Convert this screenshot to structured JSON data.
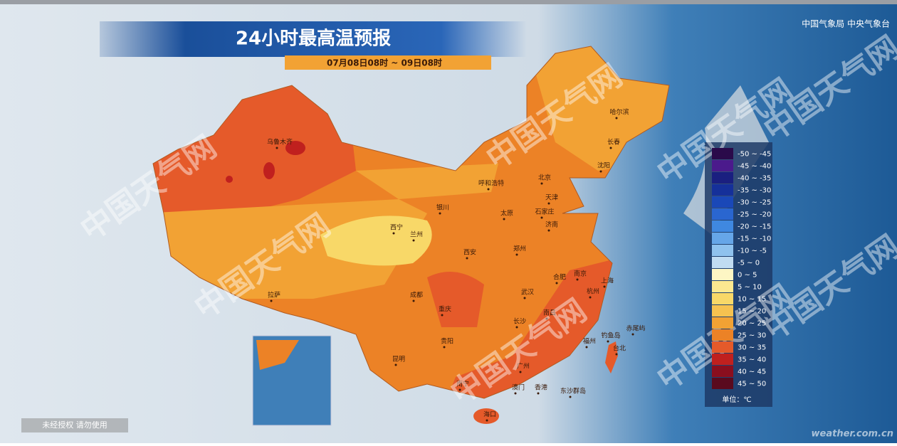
{
  "title": "24小时最高温预报",
  "subtitle": "07月08日08时 ~ 09日08时",
  "source": "中国气象局 中央气象台",
  "legend": {
    "items": [
      {
        "label": "-50 ~ -45",
        "color": "#2a0a4a"
      },
      {
        "label": "-45 ~ -40",
        "color": "#4b1a8c"
      },
      {
        "label": "-40 ~ -35",
        "color": "#1a1f80"
      },
      {
        "label": "-35 ~ -30",
        "color": "#15309a"
      },
      {
        "label": "-30 ~ -25",
        "color": "#1a48b8"
      },
      {
        "label": "-25 ~ -20",
        "color": "#2a66d0"
      },
      {
        "label": "-20 ~ -15",
        "color": "#3f88e0"
      },
      {
        "label": "-15 ~ -10",
        "color": "#66a6e8"
      },
      {
        "label": "-10 ~ -5",
        "color": "#8fc2ee"
      },
      {
        "label": "-5 ~ 0",
        "color": "#c0dcf2"
      },
      {
        "label": "0 ~ 5",
        "color": "#fdf6c4"
      },
      {
        "label": "5 ~ 10",
        "color": "#fbe890"
      },
      {
        "label": "10 ~ 15",
        "color": "#f8d868"
      },
      {
        "label": "15 ~ 20",
        "color": "#f6c250"
      },
      {
        "label": "20 ~ 25",
        "color": "#f2a234"
      },
      {
        "label": "25 ~ 30",
        "color": "#ec8226"
      },
      {
        "label": "30 ~ 35",
        "color": "#e55a2a"
      },
      {
        "label": "35 ~ 40",
        "color": "#c0201e"
      },
      {
        "label": "40 ~ 45",
        "color": "#8a0e1e"
      },
      {
        "label": "45 ~ 50",
        "color": "#5a0a1e"
      }
    ],
    "unit": "单位：℃"
  },
  "cities": [
    "乌鲁木齐",
    "哈尔滨",
    "长春",
    "沈阳",
    "呼和浩特",
    "北京",
    "天津",
    "银川",
    "太原",
    "石家庄",
    "济南",
    "西宁",
    "兰州",
    "西安",
    "郑州",
    "合肥",
    "南京",
    "上海",
    "杭州",
    "拉萨",
    "成都",
    "重庆",
    "武汉",
    "南昌",
    "长沙",
    "贵阳",
    "福州",
    "钓鱼岛",
    "赤尾屿",
    "台北",
    "昆明",
    "南宁",
    "广州",
    "澳门",
    "香港",
    "东沙群岛",
    "海口"
  ],
  "watermark": "中国天气网",
  "notice": "未经授权 请勿使用",
  "site": "weather.com.cn"
}
